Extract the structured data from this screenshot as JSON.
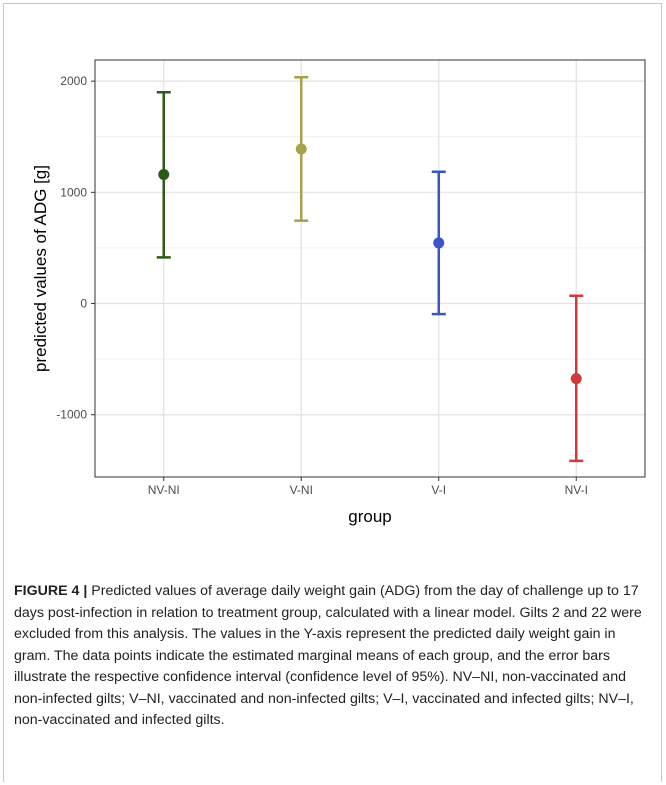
{
  "chart_data": {
    "type": "scatter",
    "subtype": "point-with-error-bars",
    "xlabel": "group",
    "ylabel": "predicted values of ADG [g]",
    "categories": [
      "NV-NI",
      "V-NI",
      "V-I",
      "NV-I"
    ],
    "points": [
      {
        "group": "NV-NI",
        "estimate": 1160,
        "lower": 415,
        "upper": 1900,
        "color": "#2d5a14"
      },
      {
        "group": "V-NI",
        "estimate": 1390,
        "lower": 745,
        "upper": 2035,
        "color": "#a7a24a"
      },
      {
        "group": "V-I",
        "estimate": 545,
        "lower": -95,
        "upper": 1185,
        "color": "#3a56c6"
      },
      {
        "group": "NV-I",
        "estimate": -675,
        "lower": -1415,
        "upper": 70,
        "color": "#d03a3a"
      }
    ],
    "yticks": [
      -1000,
      0,
      1000,
      2000
    ],
    "ytick_labels": [
      "-1000",
      "0",
      "1000",
      "2000"
    ],
    "ylim": [
      -1560,
      2190
    ],
    "grid": true,
    "panel_border": true,
    "legend": "none"
  },
  "caption": {
    "label": "FIGURE 4 |",
    "text": "Predicted values of average daily weight gain (ADG) from the day of challenge up to 17 days post-infection in relation to treatment group, calculated with a linear model. Gilts 2 and 22 were excluded from this analysis. The values in the Y-axis represent the predicted daily weight gain in gram. The data points indicate the estimated marginal means of each group, and the error bars illustrate the respective confidence interval (confidence level of 95%). NV–NI, non-vaccinated and non-infected gilts; V–NI, vaccinated and non-infected gilts; V–I, vaccinated and infected gilts; NV–I, non-vaccinated and infected gilts."
  }
}
